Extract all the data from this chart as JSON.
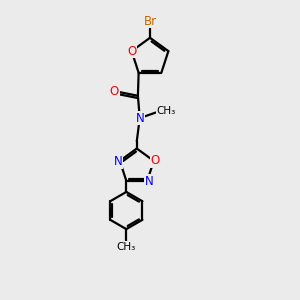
{
  "bg_color": "#ebebeb",
  "bond_color": "#000000",
  "N_color": "#0000ff",
  "O_color": "#ff0000",
  "Br_color": "#cc6600",
  "line_width": 1.6,
  "dbo": 0.055,
  "font_size_atom": 8.5,
  "font_size_me": 7.5,
  "xlim": [
    -1.8,
    1.8
  ],
  "ylim": [
    -4.8,
    3.2
  ]
}
